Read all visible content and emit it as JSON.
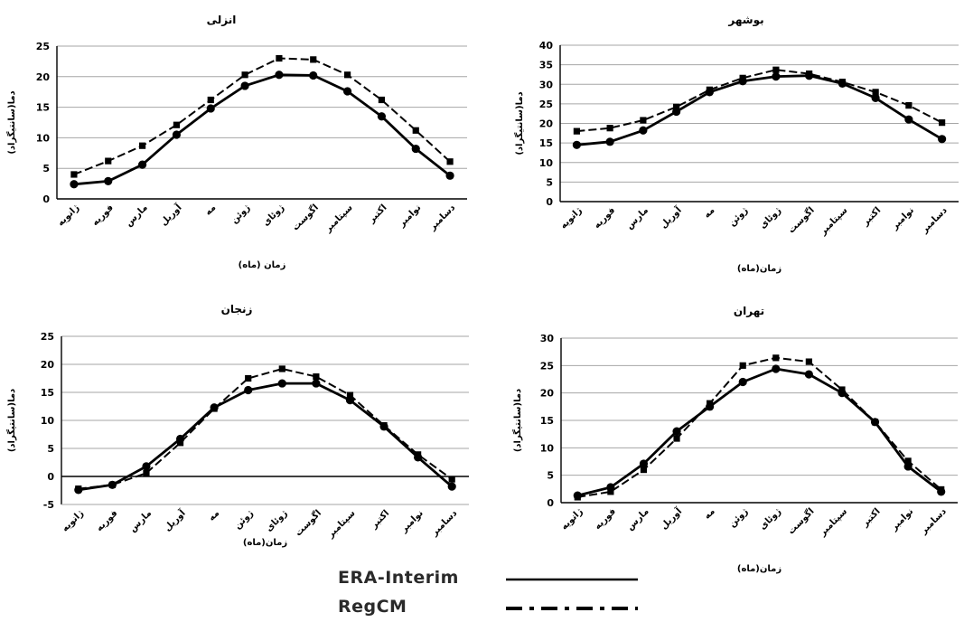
{
  "chart_data": [
    {
      "type": "line",
      "title": "انزلی",
      "xlabel": "زمان (ماه)",
      "ylabel": "دما(سانتیگراد)",
      "ylim": [
        0,
        25
      ],
      "yticks": [
        0,
        5,
        10,
        15,
        20,
        25
      ],
      "categories": [
        "ژانویه",
        "فوریه",
        "مارس",
        "آوریل",
        "مه",
        "ژوئن",
        "ژوئای",
        "اگوست",
        "سپتامبر",
        "اکتبر",
        "نوامبر",
        "دسامبر"
      ],
      "series": [
        {
          "name": "ERA-Interim",
          "values": [
            2.4,
            2.9,
            5.6,
            10.5,
            14.8,
            18.5,
            20.3,
            20.2,
            17.6,
            13.5,
            8.2,
            3.8
          ]
        },
        {
          "name": "RegCM",
          "values": [
            4.0,
            6.2,
            8.7,
            12.1,
            16.2,
            20.3,
            23.0,
            22.8,
            20.3,
            16.2,
            11.2,
            6.1
          ]
        }
      ]
    },
    {
      "type": "line",
      "title": "بوشهر",
      "xlabel": "زمان(ماه)",
      "ylabel": "دما(سانتیگراد)",
      "ylim": [
        0,
        40
      ],
      "yticks": [
        0,
        5,
        10,
        15,
        20,
        25,
        30,
        35,
        40
      ],
      "categories": [
        "ژانویه",
        "فوریه",
        "مارس",
        "آوریل",
        "مه",
        "ژوئن",
        "ژوئای",
        "اگوست",
        "سپتامبر",
        "اکتبر",
        "نوامبر",
        "دسامبر"
      ],
      "series": [
        {
          "name": "ERA-Interim",
          "values": [
            14.5,
            15.3,
            18.2,
            23.0,
            28.0,
            30.8,
            32.0,
            32.2,
            30.2,
            26.5,
            21.0,
            16.0
          ]
        },
        {
          "name": "RegCM",
          "values": [
            18.0,
            18.8,
            20.8,
            24.2,
            28.6,
            31.6,
            33.7,
            32.7,
            30.6,
            28.0,
            24.6,
            20.2
          ]
        }
      ]
    },
    {
      "type": "line",
      "title": "زنجان",
      "xlabel": "زمان(ماه)",
      "ylabel": "دما(سانتیگراد)",
      "ylim": [
        -5,
        25
      ],
      "yticks": [
        -5,
        0,
        5,
        10,
        15,
        20,
        25
      ],
      "categories": [
        "ژانویه",
        "فوریه",
        "مارس",
        "آوریل",
        "مه",
        "ژوئن",
        "ژوئای",
        "اگوست",
        "سپتامبر",
        "اکتبر",
        "نوامبر",
        "دسامبر"
      ],
      "series": [
        {
          "name": "ERA-Interim",
          "values": [
            -2.4,
            -1.5,
            1.8,
            6.7,
            12.3,
            15.4,
            16.6,
            16.6,
            13.6,
            8.9,
            3.4,
            -1.8
          ]
        },
        {
          "name": "RegCM",
          "values": [
            -2.2,
            -1.5,
            0.6,
            6.0,
            12.1,
            17.5,
            19.2,
            17.8,
            14.5,
            9.1,
            3.9,
            -0.5
          ]
        }
      ]
    },
    {
      "type": "line",
      "title": "تهران",
      "xlabel": "زمان(ماه)",
      "ylabel": "دما(سانتیگراد)",
      "ylim": [
        0,
        30
      ],
      "yticks": [
        0,
        5,
        10,
        15,
        20,
        25,
        30
      ],
      "categories": [
        "ژانویه",
        "فوریه",
        "مارس",
        "آوریل",
        "مه",
        "ژوئن",
        "ژوئای",
        "اگوست",
        "سپتامبر",
        "اکتبر",
        "نوامبر",
        "دسامبر"
      ],
      "series": [
        {
          "name": "ERA-Interim",
          "values": [
            1.3,
            2.8,
            7.1,
            13.0,
            17.5,
            22.0,
            24.4,
            23.4,
            20.0,
            14.7,
            6.6,
            2.0
          ]
        },
        {
          "name": "RegCM",
          "values": [
            1.0,
            2.0,
            6.0,
            11.7,
            18.1,
            25.0,
            26.4,
            25.7,
            20.6,
            14.7,
            7.6,
            2.4
          ]
        }
      ]
    }
  ],
  "legend": {
    "items": [
      {
        "label": "ERA-Interim",
        "style": "solid"
      },
      {
        "label": "RegCM",
        "style": "dash-dot"
      }
    ]
  },
  "colors": {
    "line": "#000000",
    "grid": "#a6a6a6",
    "axis": "#000000"
  }
}
